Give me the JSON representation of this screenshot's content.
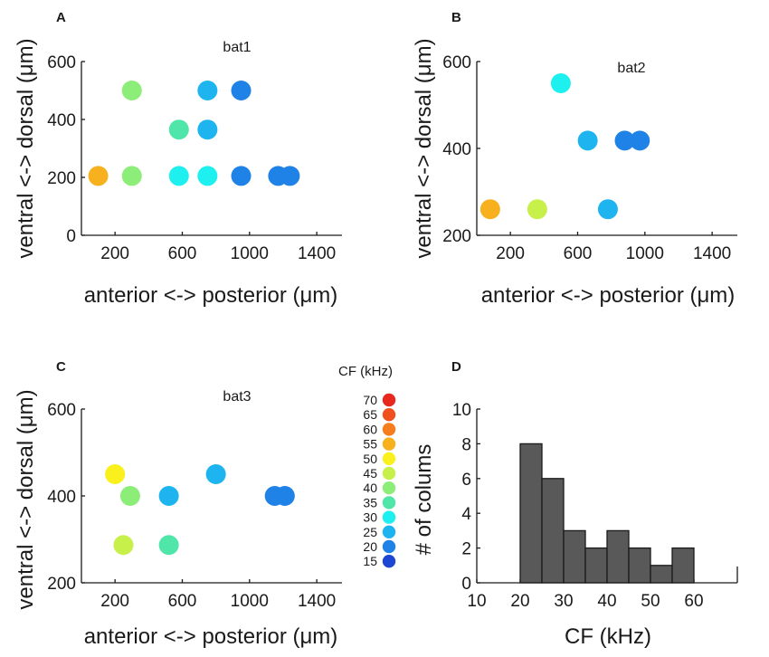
{
  "chart_data": [
    {
      "panel": "A",
      "type": "scatter",
      "title": "bat1",
      "xlabel": "anterior <-> posterior (μm)",
      "ylabel": "ventral <-> dorsal (μm)",
      "xlim": [
        0,
        1550
      ],
      "ylim": [
        0,
        600
      ],
      "xticks": [
        200,
        600,
        1000,
        1400
      ],
      "yticks": [
        0,
        200,
        400,
        600
      ],
      "points": [
        {
          "x": 100,
          "y": 205,
          "cf": 55
        },
        {
          "x": 300,
          "y": 500,
          "cf": 40
        },
        {
          "x": 300,
          "y": 205,
          "cf": 40
        },
        {
          "x": 580,
          "y": 365,
          "cf": 35
        },
        {
          "x": 580,
          "y": 205,
          "cf": 30
        },
        {
          "x": 750,
          "y": 500,
          "cf": 25
        },
        {
          "x": 750,
          "y": 365,
          "cf": 25
        },
        {
          "x": 750,
          "y": 205,
          "cf": 30
        },
        {
          "x": 950,
          "y": 500,
          "cf": 20
        },
        {
          "x": 950,
          "y": 205,
          "cf": 20
        },
        {
          "x": 1170,
          "y": 205,
          "cf": 20
        },
        {
          "x": 1240,
          "y": 205,
          "cf": 20
        }
      ]
    },
    {
      "panel": "B",
      "type": "scatter",
      "title": "bat2",
      "xlabel": "anterior <-> posterior (μm)",
      "ylabel": "ventral <-> dorsal (μm)",
      "xlim": [
        0,
        1550
      ],
      "ylim": [
        200,
        600
      ],
      "xticks": [
        200,
        600,
        1000,
        1400
      ],
      "yticks": [
        200,
        400,
        600
      ],
      "points": [
        {
          "x": 80,
          "y": 260,
          "cf": 55
        },
        {
          "x": 360,
          "y": 260,
          "cf": 45
        },
        {
          "x": 500,
          "y": 550,
          "cf": 30
        },
        {
          "x": 660,
          "y": 418,
          "cf": 25
        },
        {
          "x": 780,
          "y": 260,
          "cf": 25
        },
        {
          "x": 880,
          "y": 418,
          "cf": 20
        },
        {
          "x": 970,
          "y": 418,
          "cf": 20
        }
      ]
    },
    {
      "panel": "C",
      "type": "scatter",
      "title": "bat3",
      "xlabel": "anterior <-> posterior (μm)",
      "ylabel": "ventral <-> dorsal (μm)",
      "xlim": [
        0,
        1550
      ],
      "ylim": [
        200,
        600
      ],
      "xticks": [
        200,
        600,
        1000,
        1400
      ],
      "yticks": [
        200,
        400,
        600
      ],
      "points": [
        {
          "x": 200,
          "y": 450,
          "cf": 50
        },
        {
          "x": 290,
          "y": 400,
          "cf": 40
        },
        {
          "x": 250,
          "y": 287,
          "cf": 45
        },
        {
          "x": 520,
          "y": 400,
          "cf": 25
        },
        {
          "x": 520,
          "y": 287,
          "cf": 35
        },
        {
          "x": 800,
          "y": 450,
          "cf": 25
        },
        {
          "x": 1150,
          "y": 400,
          "cf": 20
        },
        {
          "x": 1210,
          "y": 400,
          "cf": 20
        }
      ]
    },
    {
      "panel": "D",
      "type": "bar",
      "title": "",
      "xlabel": "CF (kHz)",
      "ylabel": "# of colums",
      "xlim": [
        10,
        70
      ],
      "ylim": [
        0,
        10
      ],
      "xticks": [
        10,
        20,
        30,
        40,
        50,
        60
      ],
      "yticks": [
        0,
        2,
        4,
        6,
        8,
        10
      ],
      "bin_width": 5,
      "bins": [
        {
          "start": 20,
          "count": 8
        },
        {
          "start": 25,
          "count": 6
        },
        {
          "start": 30,
          "count": 3
        },
        {
          "start": 35,
          "count": 2
        },
        {
          "start": 40,
          "count": 3
        },
        {
          "start": 45,
          "count": 2
        },
        {
          "start": 50,
          "count": 1
        },
        {
          "start": 55,
          "count": 2
        }
      ],
      "bar_color": "#595959"
    }
  ],
  "legend": {
    "title": "CF (kHz)",
    "entries": [
      {
        "label": "70",
        "color": "#e8281e"
      },
      {
        "label": "65",
        "color": "#f0501e"
      },
      {
        "label": "60",
        "color": "#f57d1e"
      },
      {
        "label": "55",
        "color": "#f7b01e"
      },
      {
        "label": "50",
        "color": "#faf01e"
      },
      {
        "label": "45",
        "color": "#c8f04b"
      },
      {
        "label": "40",
        "color": "#8ced78"
      },
      {
        "label": "35",
        "color": "#50e6aa"
      },
      {
        "label": "30",
        "color": "#1ef0f0"
      },
      {
        "label": "25",
        "color": "#1eb4f0"
      },
      {
        "label": "20",
        "color": "#1e82e6"
      },
      {
        "label": "15",
        "color": "#1e46d2"
      }
    ]
  }
}
